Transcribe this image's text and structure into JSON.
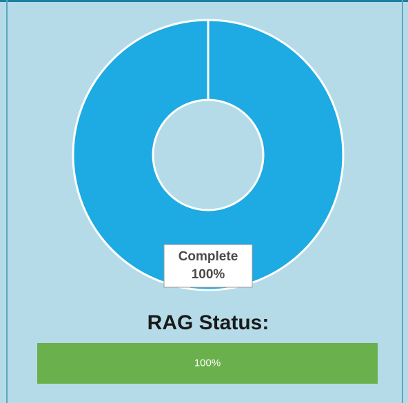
{
  "chart_data": [
    {
      "type": "donut",
      "categories": [
        "Complete"
      ],
      "values": [
        100
      ],
      "value_labels": [
        "100%"
      ],
      "colors": [
        "#1eaae2"
      ]
    },
    {
      "type": "progress",
      "title": "RAG Status:",
      "values": [
        100
      ],
      "value_labels": [
        "100%"
      ],
      "color": "#6ab04c",
      "xlim": [
        0,
        100
      ]
    }
  ]
}
